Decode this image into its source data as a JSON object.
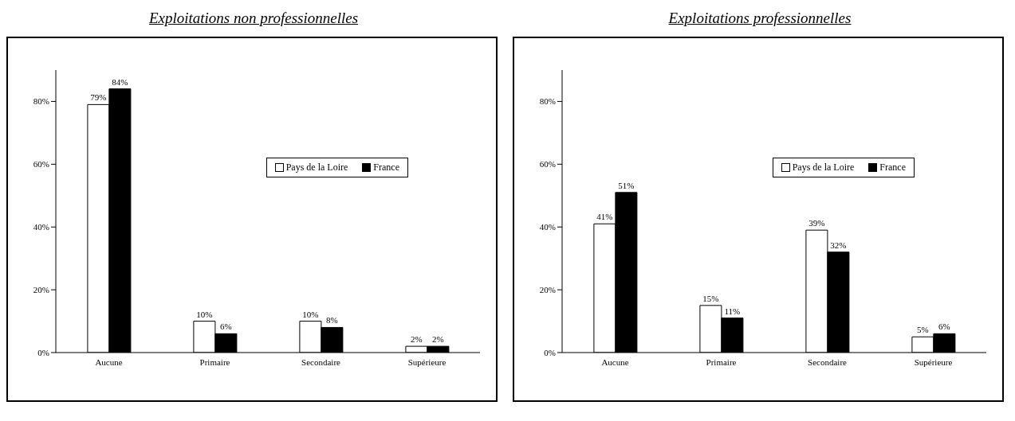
{
  "chart_data": [
    {
      "type": "bar",
      "title": "Exploitations non professionnelles",
      "categories": [
        "Aucune",
        "Primaire",
        "Secondaire",
        "Supérieure"
      ],
      "ylim": [
        0,
        90
      ],
      "yticks": [
        {
          "value": 0,
          "label": "0%"
        },
        {
          "value": 20,
          "label": "20%"
        },
        {
          "value": 40,
          "label": "40%"
        },
        {
          "value": 60,
          "label": "60%"
        },
        {
          "value": 80,
          "label": "80%"
        }
      ],
      "grid": false,
      "legend": "top right",
      "series": [
        {
          "name": "Pays de la Loire",
          "color": "#ffffff",
          "values": [
            79,
            10,
            10,
            2
          ],
          "value_labels": [
            "79%",
            "10%",
            "10%",
            "2%"
          ]
        },
        {
          "name": "France",
          "color": "#000000",
          "values": [
            84,
            6,
            8,
            2
          ],
          "value_labels": [
            "84%",
            "6%",
            "8%",
            "2%"
          ]
        }
      ]
    },
    {
      "type": "bar",
      "title": "Exploitations professionnelles",
      "categories": [
        "Aucune",
        "Primaire",
        "Secondaire",
        "Supérieure"
      ],
      "ylim": [
        0,
        90
      ],
      "yticks": [
        {
          "value": 0,
          "label": "0%"
        },
        {
          "value": 20,
          "label": "20%"
        },
        {
          "value": 40,
          "label": "40%"
        },
        {
          "value": 60,
          "label": "60%"
        },
        {
          "value": 80,
          "label": "80%"
        }
      ],
      "grid": false,
      "legend": "top right",
      "series": [
        {
          "name": "Pays de la Loire",
          "color": "#ffffff",
          "values": [
            41,
            15,
            39,
            5
          ],
          "value_labels": [
            "41%",
            "15%",
            "39%",
            "5%"
          ]
        },
        {
          "name": "France",
          "color": "#000000",
          "values": [
            51,
            11,
            32,
            6
          ],
          "value_labels": [
            "51%",
            "11%",
            "32%",
            "6%"
          ]
        }
      ]
    }
  ]
}
